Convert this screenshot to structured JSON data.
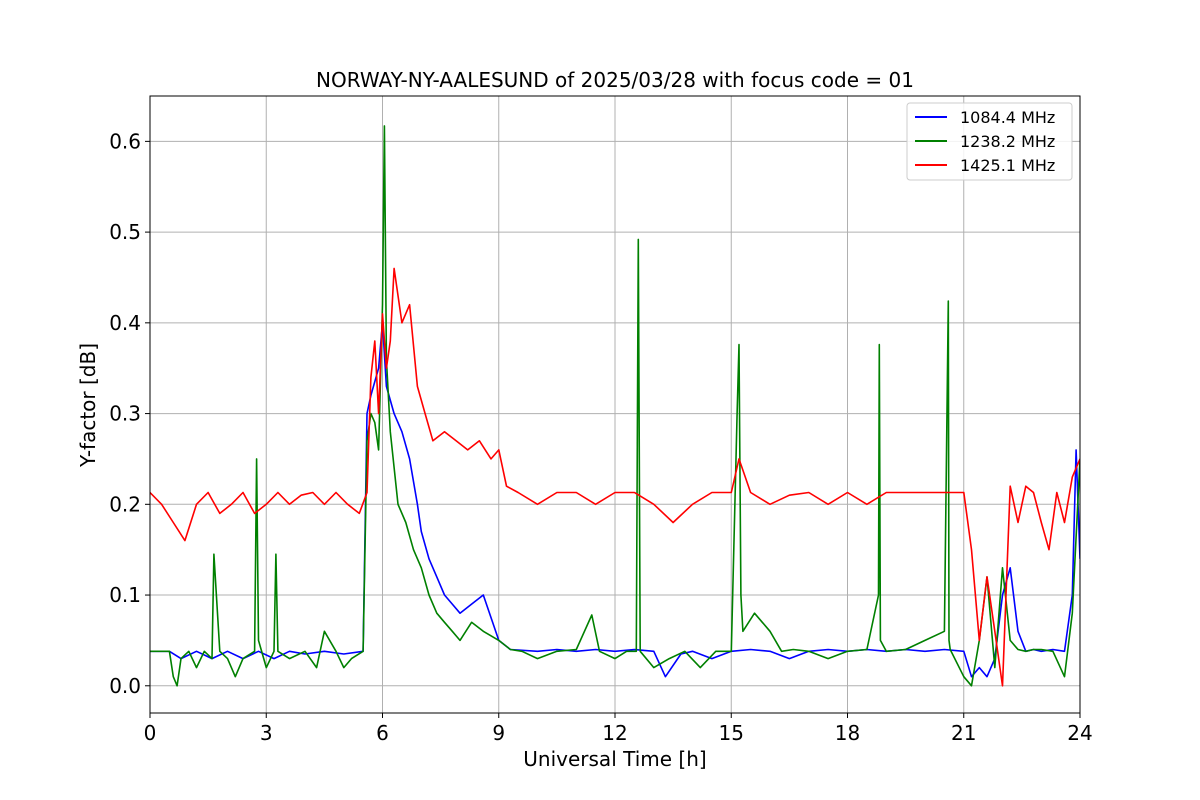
{
  "chart_data": {
    "type": "line",
    "title": "NORWAY-NY-AALESUND of 2025/03/28 with focus code = 01",
    "xlabel": "Universal Time [h]",
    "ylabel": "Y-factor [dB]",
    "xlim": [
      0,
      24
    ],
    "ylim": [
      -0.03,
      0.65
    ],
    "xticks": [
      0,
      3,
      6,
      9,
      12,
      15,
      18,
      21,
      24
    ],
    "xtick_labels": [
      "0",
      "3",
      "6",
      "9",
      "12",
      "15",
      "18",
      "21",
      "24"
    ],
    "yticks": [
      0.0,
      0.1,
      0.2,
      0.3,
      0.4,
      0.5,
      0.6
    ],
    "ytick_labels": [
      "0.0",
      "0.1",
      "0.2",
      "0.3",
      "0.4",
      "0.5",
      "0.6"
    ],
    "grid": true,
    "legend_position": "top-right",
    "series": [
      {
        "name": "1084.4 MHz",
        "color": "#0000ff",
        "x": [
          0,
          0.5,
          0.8,
          1.2,
          1.6,
          2.0,
          2.4,
          2.8,
          3.2,
          3.6,
          4.0,
          4.5,
          5.0,
          5.5,
          5.6,
          5.7,
          5.9,
          6.0,
          6.1,
          6.3,
          6.5,
          6.7,
          6.9,
          7.0,
          7.2,
          7.4,
          7.6,
          7.8,
          8.0,
          8.3,
          8.6,
          9.0,
          9.3,
          10.0,
          10.5,
          11.0,
          11.5,
          12.0,
          12.5,
          13.0,
          13.3,
          13.7,
          14.0,
          14.5,
          15.0,
          15.5,
          16.0,
          16.5,
          17.0,
          17.5,
          18.0,
          18.5,
          19.0,
          19.5,
          20.0,
          20.5,
          21.0,
          21.2,
          21.4,
          21.6,
          21.8,
          22.0,
          22.2,
          22.4,
          22.6,
          22.8,
          23.0,
          23.3,
          23.6,
          23.8,
          23.9,
          24.0
        ],
        "y": [
          0.038,
          0.038,
          0.03,
          0.038,
          0.03,
          0.038,
          0.03,
          0.038,
          0.03,
          0.038,
          0.035,
          0.038,
          0.035,
          0.038,
          0.3,
          0.32,
          0.35,
          0.4,
          0.33,
          0.3,
          0.28,
          0.25,
          0.2,
          0.17,
          0.14,
          0.12,
          0.1,
          0.09,
          0.08,
          0.09,
          0.1,
          0.05,
          0.04,
          0.038,
          0.04,
          0.038,
          0.04,
          0.038,
          0.04,
          0.038,
          0.01,
          0.035,
          0.038,
          0.03,
          0.038,
          0.04,
          0.038,
          0.03,
          0.038,
          0.04,
          0.038,
          0.04,
          0.038,
          0.04,
          0.038,
          0.04,
          0.038,
          0.01,
          0.02,
          0.01,
          0.03,
          0.1,
          0.13,
          0.06,
          0.038,
          0.04,
          0.038,
          0.04,
          0.038,
          0.1,
          0.26,
          0.14
        ]
      },
      {
        "name": "1238.2 MHz",
        "color": "#008000",
        "x": [
          0,
          0.5,
          0.6,
          0.7,
          0.8,
          1.0,
          1.2,
          1.4,
          1.6,
          1.65,
          1.8,
          2.0,
          2.2,
          2.4,
          2.7,
          2.75,
          2.8,
          3.0,
          3.2,
          3.25,
          3.3,
          3.6,
          4.0,
          4.3,
          4.5,
          4.8,
          5.0,
          5.2,
          5.5,
          5.6,
          5.7,
          5.8,
          5.9,
          6.0,
          6.05,
          6.1,
          6.2,
          6.4,
          6.6,
          6.8,
          7.0,
          7.2,
          7.4,
          7.6,
          7.8,
          8.0,
          8.3,
          8.6,
          9.0,
          9.3,
          9.6,
          10.0,
          10.5,
          11.0,
          11.4,
          11.6,
          12.0,
          12.3,
          12.55,
          12.6,
          12.65,
          13.0,
          13.4,
          13.8,
          14.2,
          14.6,
          15.0,
          15.15,
          15.2,
          15.25,
          15.3,
          15.6,
          15.8,
          16.0,
          16.3,
          16.6,
          17.0,
          17.5,
          18.0,
          18.5,
          18.8,
          18.82,
          18.85,
          19.0,
          19.5,
          20.0,
          20.5,
          20.6,
          20.62,
          20.65,
          21.0,
          21.2,
          21.4,
          21.6,
          21.8,
          22.0,
          22.2,
          22.4,
          22.6,
          22.8,
          23.0,
          23.3,
          23.6,
          23.8,
          24.0
        ],
        "y": [
          0.038,
          0.038,
          0.01,
          0.0,
          0.03,
          0.038,
          0.02,
          0.038,
          0.03,
          0.145,
          0.038,
          0.03,
          0.01,
          0.03,
          0.038,
          0.25,
          0.05,
          0.02,
          0.038,
          0.145,
          0.038,
          0.03,
          0.038,
          0.02,
          0.06,
          0.038,
          0.02,
          0.03,
          0.038,
          0.27,
          0.3,
          0.29,
          0.26,
          0.42,
          0.617,
          0.36,
          0.28,
          0.2,
          0.18,
          0.15,
          0.13,
          0.1,
          0.08,
          0.07,
          0.06,
          0.05,
          0.07,
          0.06,
          0.05,
          0.04,
          0.038,
          0.03,
          0.038,
          0.04,
          0.078,
          0.038,
          0.03,
          0.038,
          0.038,
          0.492,
          0.038,
          0.02,
          0.03,
          0.038,
          0.02,
          0.038,
          0.038,
          0.3,
          0.376,
          0.1,
          0.06,
          0.08,
          0.07,
          0.06,
          0.038,
          0.04,
          0.038,
          0.03,
          0.038,
          0.04,
          0.1,
          0.376,
          0.05,
          0.038,
          0.04,
          0.05,
          0.06,
          0.424,
          0.05,
          0.04,
          0.01,
          0.0,
          0.05,
          0.12,
          0.02,
          0.13,
          0.05,
          0.04,
          0.038,
          0.04,
          0.04,
          0.038,
          0.01,
          0.08,
          0.25
        ]
      },
      {
        "name": "1425.1 MHz",
        "color": "#ff0000",
        "x": [
          0,
          0.3,
          0.6,
          0.9,
          1.2,
          1.5,
          1.8,
          2.1,
          2.4,
          2.7,
          3.0,
          3.3,
          3.6,
          3.9,
          4.2,
          4.5,
          4.8,
          5.1,
          5.4,
          5.6,
          5.7,
          5.8,
          5.9,
          6.0,
          6.1,
          6.2,
          6.3,
          6.5,
          6.7,
          6.9,
          7.1,
          7.3,
          7.6,
          7.9,
          8.2,
          8.5,
          8.8,
          9.0,
          9.2,
          9.5,
          10.0,
          10.5,
          11.0,
          11.5,
          12.0,
          12.5,
          13.0,
          13.5,
          14.0,
          14.5,
          15.0,
          15.2,
          15.5,
          16.0,
          16.5,
          17.0,
          17.5,
          18.0,
          18.5,
          19.0,
          19.5,
          20.0,
          20.5,
          21.0,
          21.2,
          21.4,
          21.6,
          21.8,
          22.0,
          22.2,
          22.4,
          22.6,
          22.8,
          23.0,
          23.2,
          23.4,
          23.6,
          23.8,
          24.0
        ],
        "y": [
          0.213,
          0.2,
          0.18,
          0.16,
          0.2,
          0.213,
          0.19,
          0.2,
          0.213,
          0.19,
          0.2,
          0.213,
          0.2,
          0.21,
          0.213,
          0.2,
          0.213,
          0.2,
          0.19,
          0.213,
          0.34,
          0.38,
          0.3,
          0.41,
          0.35,
          0.38,
          0.46,
          0.4,
          0.42,
          0.33,
          0.3,
          0.27,
          0.28,
          0.27,
          0.26,
          0.27,
          0.25,
          0.26,
          0.22,
          0.213,
          0.2,
          0.213,
          0.213,
          0.2,
          0.213,
          0.213,
          0.2,
          0.18,
          0.2,
          0.213,
          0.213,
          0.25,
          0.213,
          0.2,
          0.21,
          0.213,
          0.2,
          0.213,
          0.2,
          0.213,
          0.213,
          0.213,
          0.213,
          0.213,
          0.15,
          0.05,
          0.12,
          0.06,
          0.0,
          0.22,
          0.18,
          0.22,
          0.213,
          0.18,
          0.15,
          0.213,
          0.18,
          0.23,
          0.25
        ]
      }
    ]
  }
}
